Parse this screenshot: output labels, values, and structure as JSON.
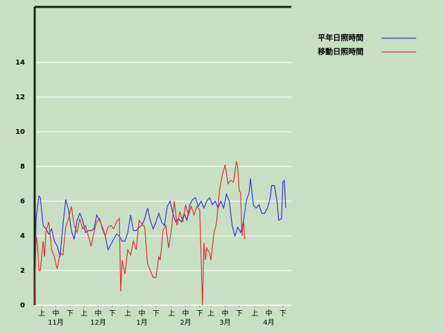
{
  "chart_data": {
    "type": "line",
    "xlim": [
      0,
      182
    ],
    "xticks": [
      {
        "value": 5,
        "label": "上"
      },
      {
        "value": 15,
        "label": "中"
      },
      {
        "value": 25,
        "label": "下"
      },
      {
        "value": 35,
        "label": "上"
      },
      {
        "value": 45,
        "label": "中"
      },
      {
        "value": 55,
        "label": "下"
      },
      {
        "value": 66,
        "label": "上"
      },
      {
        "value": 76,
        "label": "中"
      },
      {
        "value": 86,
        "label": "下"
      },
      {
        "value": 97,
        "label": "上"
      },
      {
        "value": 107,
        "label": "中"
      },
      {
        "value": 117,
        "label": "下"
      },
      {
        "value": 125,
        "label": "上"
      },
      {
        "value": 135,
        "label": "中"
      },
      {
        "value": 145,
        "label": "下"
      },
      {
        "value": 156,
        "label": "上"
      },
      {
        "value": 166,
        "label": "中"
      },
      {
        "value": 176,
        "label": "下"
      }
    ],
    "month_ticks": [
      {
        "value": 15,
        "label": "11月"
      },
      {
        "value": 45,
        "label": "12月"
      },
      {
        "value": 76,
        "label": "1月"
      },
      {
        "value": 107,
        "label": "2月"
      },
      {
        "value": 135,
        "label": "3月"
      },
      {
        "value": 166,
        "label": "4月"
      }
    ],
    "ylim": [
      0,
      17.2
    ],
    "yticks": [
      0,
      2,
      4,
      6,
      8,
      10,
      12,
      14
    ],
    "grid": true,
    "series": [
      {
        "name": "平年日照時間",
        "color": "#3333dd",
        "x": [
          0,
          1,
          3,
          4,
          6,
          8,
          10,
          12,
          14,
          16,
          18,
          20,
          22,
          24,
          26,
          28,
          30,
          32,
          34,
          36,
          38,
          40,
          42,
          44,
          46,
          48,
          50,
          52,
          54,
          56,
          58,
          60,
          62,
          64,
          66,
          68,
          70,
          72,
          74,
          76,
          78,
          80,
          82,
          84,
          86,
          88,
          90,
          92,
          94,
          96,
          98,
          100,
          102,
          104,
          106,
          108,
          110,
          112,
          114,
          116,
          118,
          120,
          122,
          124,
          126,
          128,
          130,
          132,
          134,
          136,
          138,
          140,
          142,
          144,
          146,
          148,
          150,
          152,
          153,
          155,
          157,
          159,
          161,
          163,
          165,
          167,
          168,
          170,
          172,
          173,
          175,
          176,
          177,
          178
        ],
        "values": [
          0,
          5.0,
          6.3,
          6.2,
          4.6,
          4.4,
          4.1,
          4.4,
          3.7,
          3.4,
          2.8,
          4.6,
          6.1,
          5.5,
          4.3,
          3.8,
          4.9,
          5.3,
          4.9,
          4.2,
          4.3,
          4.3,
          4.4,
          5.2,
          4.9,
          4.5,
          4.0,
          3.2,
          3.5,
          3.8,
          4.1,
          4.0,
          3.7,
          3.7,
          4.2,
          5.2,
          4.3,
          4.3,
          4.5,
          4.6,
          5.0,
          5.6,
          4.9,
          4.4,
          4.8,
          5.3,
          4.8,
          4.6,
          5.7,
          6.0,
          5.3,
          4.8,
          5.0,
          4.8,
          5.3,
          4.9,
          5.8,
          6.1,
          6.2,
          5.7,
          6.0,
          5.6,
          6.0,
          6.2,
          5.8,
          6.0,
          5.6,
          6.0,
          5.6,
          6.4,
          6.0,
          4.6,
          4.0,
          4.5,
          4.2,
          4.8,
          6.0,
          6.5,
          7.3,
          5.8,
          5.6,
          5.8,
          5.3,
          5.3,
          5.6,
          6.2,
          6.9,
          6.9,
          5.9,
          4.9,
          5.0,
          7.1,
          7.2,
          5.6
        ]
      },
      {
        "name": "移動日照時間",
        "color": "#e03030",
        "x": [
          0,
          1,
          2,
          3,
          4,
          6,
          7,
          8,
          10,
          12,
          14,
          15,
          16,
          18,
          20,
          22,
          24,
          26,
          28,
          30,
          32,
          34,
          36,
          38,
          40,
          42,
          44,
          46,
          48,
          50,
          52,
          54,
          56,
          58,
          60,
          61,
          62,
          64,
          66,
          68,
          70,
          72,
          74,
          76,
          78,
          80,
          82,
          84,
          86,
          88,
          89,
          91,
          93,
          95,
          97,
          99,
          101,
          103,
          105,
          107,
          109,
          111,
          113,
          115,
          117,
          119,
          120,
          121,
          122,
          124,
          125,
          127,
          129,
          131,
          133,
          135,
          136,
          137,
          139,
          141,
          143,
          144,
          145,
          146,
          147,
          148,
          149
        ],
        "values": [
          0,
          4.0,
          3.5,
          2.0,
          2.0,
          3.7,
          2.8,
          4.3,
          4.8,
          3.2,
          2.8,
          2.4,
          2.1,
          3.0,
          2.9,
          4.5,
          5.0,
          5.7,
          4.6,
          4.2,
          5.0,
          4.4,
          4.6,
          4.0,
          3.4,
          4.2,
          4.8,
          5.0,
          4.4,
          4.0,
          4.5,
          4.6,
          4.4,
          4.8,
          5.0,
          0.8,
          2.6,
          1.8,
          3.2,
          2.9,
          3.7,
          3.2,
          4.9,
          4.7,
          4.5,
          2.4,
          2.0,
          1.6,
          1.6,
          2.8,
          2.6,
          4.3,
          4.6,
          3.3,
          4.4,
          6.0,
          4.6,
          5.4,
          4.8,
          5.8,
          5.2,
          5.7,
          5.2,
          5.7,
          5.5,
          0.0,
          3.6,
          2.6,
          3.3,
          3.0,
          2.6,
          4.1,
          4.8,
          6.6,
          7.5,
          8.1,
          7.6,
          7.0,
          7.2,
          7.1,
          8.3,
          7.9,
          6.6,
          6.5,
          4.0,
          4.9,
          3.8
        ]
      }
    ]
  }
}
